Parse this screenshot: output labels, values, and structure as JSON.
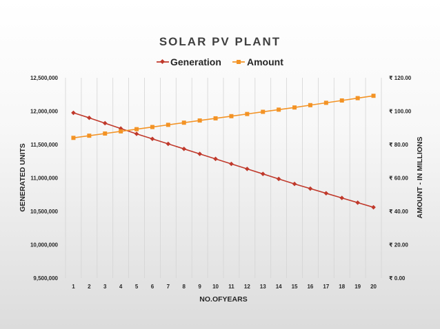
{
  "chart_data": {
    "type": "line",
    "title": "SOLAR PV PLANT",
    "xlabel": "NO.OFYEARS",
    "ylabel": "GENERATED UNITS",
    "y2label": "AMOUNT - IN MILLIONS",
    "categories": [
      "1",
      "2",
      "3",
      "4",
      "5",
      "6",
      "7",
      "8",
      "9",
      "10",
      "11",
      "12",
      "13",
      "14",
      "15",
      "16",
      "17",
      "18",
      "19",
      "20"
    ],
    "ylim": [
      9500000,
      12500000
    ],
    "y_ticks": [
      "12,500,000",
      "12,000,000",
      "11,500,000",
      "11,000,000",
      "10,500,000",
      "10,000,000",
      "9,500,000"
    ],
    "y2lim": [
      0,
      120
    ],
    "y2_ticks": [
      "₹ 120.00",
      "₹ 100.00",
      "₹ 80.00",
      "₹ 60.00",
      "₹ 40.00",
      "₹ 20.00",
      "₹ 0.00"
    ],
    "grid": "vertical",
    "legend": "top",
    "series": [
      {
        "name": "Generation",
        "axis": "left",
        "color": "#C0392B",
        "marker": "diamond",
        "values": [
          11975000,
          11900000,
          11820000,
          11740000,
          11660000,
          11585000,
          11510000,
          11435000,
          11360000,
          11285000,
          11210000,
          11135000,
          11060000,
          10985000,
          10910000,
          10840000,
          10770000,
          10700000,
          10630000,
          10560000
        ]
      },
      {
        "name": "Amount",
        "axis": "right",
        "color": "#F39325",
        "marker": "square",
        "values": [
          84.0,
          85.3,
          86.6,
          87.9,
          89.2,
          90.5,
          91.8,
          93.1,
          94.4,
          95.7,
          97.0,
          98.3,
          99.6,
          100.9,
          102.2,
          103.6,
          105.0,
          106.4,
          107.8,
          109.2
        ]
      }
    ]
  }
}
